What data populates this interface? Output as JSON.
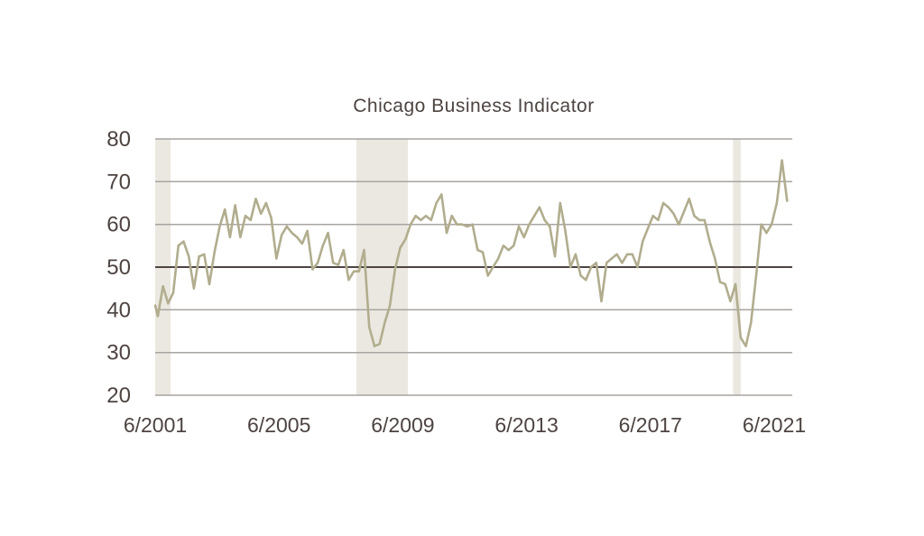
{
  "chart_data": {
    "type": "line",
    "title": "Chicago Business Indicator",
    "xlabel": "",
    "ylabel": "",
    "ylim": [
      20,
      80
    ],
    "xlim": [
      "2001-06",
      "2022-01"
    ],
    "y_ticks": [
      "80",
      "70",
      "60",
      "50",
      "40",
      "30",
      "20"
    ],
    "x_ticks": [
      "6/2001",
      "6/2005",
      "6/2009",
      "6/2013",
      "6/2017",
      "6/2021"
    ],
    "grid": true,
    "reference_line": 50,
    "recessions": [
      [
        "2001-06",
        "2001-12"
      ],
      [
        "2007-12",
        "2009-08"
      ],
      [
        "2020-02",
        "2020-05"
      ]
    ],
    "line_color": "#b1ad8e",
    "band_color": "#ebe8e1",
    "grid_color": "#a8a4a1",
    "reference_color": "#4d4441",
    "x": [
      "2001-06",
      "2001-07",
      "2001-09",
      "2001-11",
      "2002-01",
      "2002-03",
      "2002-05",
      "2002-07",
      "2002-09",
      "2002-11",
      "2003-01",
      "2003-03",
      "2003-05",
      "2003-07",
      "2003-09",
      "2003-11",
      "2004-01",
      "2004-03",
      "2004-05",
      "2004-07",
      "2004-09",
      "2004-11",
      "2005-01",
      "2005-03",
      "2005-05",
      "2005-07",
      "2005-09",
      "2005-11",
      "2006-01",
      "2006-03",
      "2006-05",
      "2006-07",
      "2006-09",
      "2006-11",
      "2007-01",
      "2007-03",
      "2007-05",
      "2007-07",
      "2007-09",
      "2007-11",
      "2008-01",
      "2008-03",
      "2008-05",
      "2008-07",
      "2008-09",
      "2008-11",
      "2009-01",
      "2009-03",
      "2009-05",
      "2009-07",
      "2009-09",
      "2009-11",
      "2010-01",
      "2010-03",
      "2010-05",
      "2010-07",
      "2010-09",
      "2010-11",
      "2011-01",
      "2011-03",
      "2011-05",
      "2011-07",
      "2011-09",
      "2011-11",
      "2012-01",
      "2012-03",
      "2012-05",
      "2012-07",
      "2012-09",
      "2012-11",
      "2013-01",
      "2013-03",
      "2013-05",
      "2013-07",
      "2013-09",
      "2013-11",
      "2014-01",
      "2014-03",
      "2014-05",
      "2014-07",
      "2014-09",
      "2014-11",
      "2015-01",
      "2015-03",
      "2015-05",
      "2015-07",
      "2015-09",
      "2015-11",
      "2016-01",
      "2016-03",
      "2016-05",
      "2016-07",
      "2016-09",
      "2016-11",
      "2017-01",
      "2017-03",
      "2017-05",
      "2017-07",
      "2017-09",
      "2017-11",
      "2018-01",
      "2018-03",
      "2018-05",
      "2018-07",
      "2018-09",
      "2018-11",
      "2019-01",
      "2019-03",
      "2019-05",
      "2019-07",
      "2019-09",
      "2019-11",
      "2020-01",
      "2020-03",
      "2020-05",
      "2020-07",
      "2020-09",
      "2020-11",
      "2021-01",
      "2021-03",
      "2021-05",
      "2021-07",
      "2021-09",
      "2021-11"
    ],
    "series": [
      {
        "values": [
          41,
          38.5,
          45.5,
          41.5,
          44,
          55,
          56,
          52.5,
          45,
          52.5,
          53,
          46,
          53.5,
          59.5,
          63.5,
          57,
          64.5,
          57,
          62,
          61,
          66,
          62.5,
          65,
          61.5,
          52,
          57.5,
          59.5,
          58,
          57,
          55.5,
          58.5,
          49.5,
          51,
          55,
          58,
          51,
          50.5,
          54,
          47,
          49,
          49,
          54,
          36,
          31.5,
          32,
          37,
          41,
          49.5,
          54.5,
          56.5,
          60,
          62,
          61,
          62,
          61,
          65,
          67,
          58,
          62,
          60,
          60,
          59.5,
          60,
          54,
          53.5,
          48,
          50,
          52,
          55,
          54,
          55,
          59.5,
          57,
          60,
          62,
          64,
          61,
          59.5,
          52.5,
          65,
          58.5,
          50,
          53,
          48,
          47,
          50,
          51,
          42,
          51,
          52,
          53,
          51,
          53,
          53,
          50,
          56,
          59,
          62,
          61,
          65,
          64,
          62.5,
          60,
          63,
          66,
          62,
          61,
          61,
          56,
          52,
          46.5,
          46,
          42,
          46,
          33.5,
          31.5,
          37,
          48,
          60,
          58,
          60,
          65,
          75,
          65.5
        ]
      }
    ]
  }
}
